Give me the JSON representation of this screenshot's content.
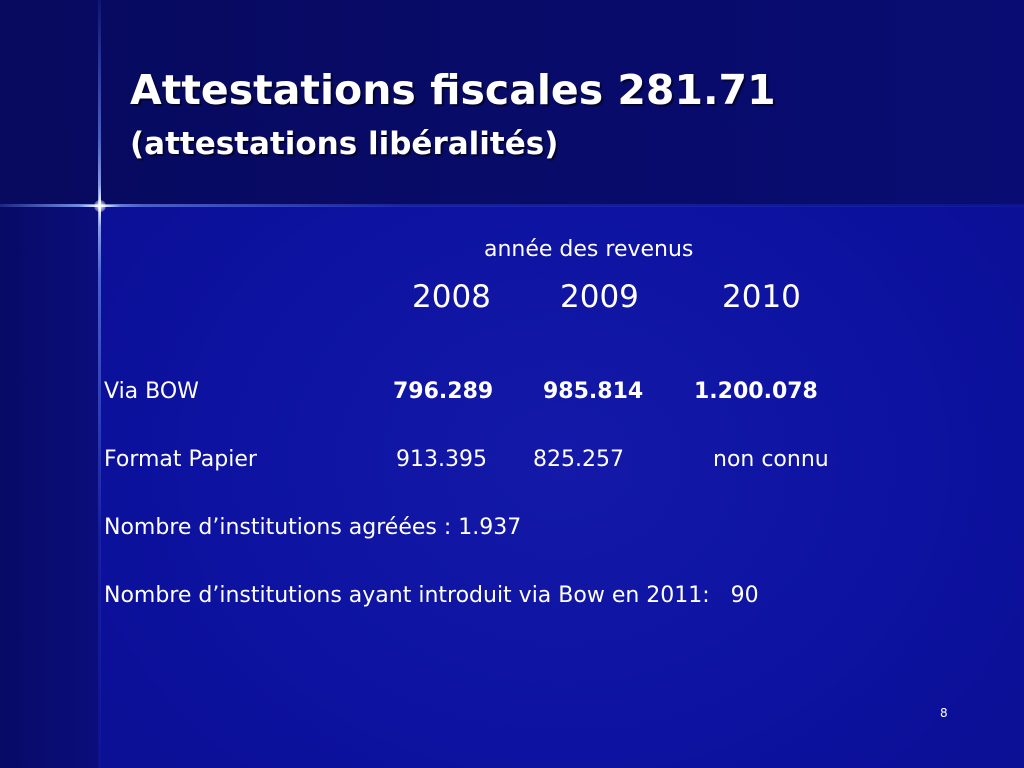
{
  "slide": {
    "title": "Attestations fiscales 281.71",
    "subtitle": "(attestations libéralités)",
    "page_number": "8"
  },
  "table": {
    "header": "année des revenus",
    "years": [
      "2008",
      "2009",
      "2010"
    ],
    "rows": [
      {
        "label": "Via BOW",
        "values": [
          "796.289",
          "985.814",
          "1.200.078"
        ]
      },
      {
        "label": "Format Papier",
        "values": [
          "913.395",
          "825.257",
          "non connu"
        ]
      }
    ]
  },
  "notes": [
    "Nombre d’institutions agréées : 1.937",
    "Nombre d’institutions ayant introduit via Bow en 2011:   90"
  ],
  "colors": {
    "background": "#0d12a0",
    "title_band": "#080b6a",
    "text": "#ffffff"
  }
}
